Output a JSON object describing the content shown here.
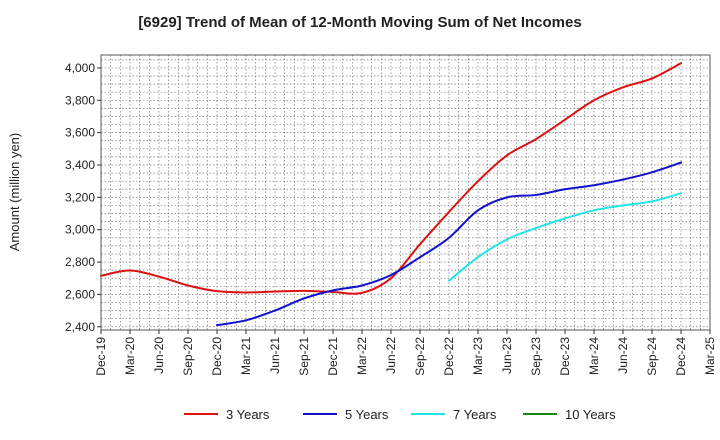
{
  "chart_data": {
    "type": "line",
    "title": "[6929]  Trend of Mean of 12-Month Moving Sum of Net Incomes",
    "xlabel": "",
    "ylabel": "Amount (million yen)",
    "ylim": [
      2380,
      4080
    ],
    "yticks": [
      2400,
      2600,
      2800,
      3000,
      3200,
      3400,
      3600,
      3800,
      4000
    ],
    "ytick_labels": [
      "2,400",
      "2,600",
      "2,800",
      "3,000",
      "3,200",
      "3,400",
      "3,600",
      "3,800",
      "4,000"
    ],
    "xlim": [
      "Dec-19",
      "Mar-25"
    ],
    "xticks": [
      "Dec-19",
      "Mar-20",
      "Jun-20",
      "Sep-20",
      "Dec-20",
      "Mar-21",
      "Jun-21",
      "Sep-21",
      "Dec-21",
      "Mar-22",
      "Jun-22",
      "Sep-22",
      "Dec-22",
      "Mar-23",
      "Jun-23",
      "Sep-23",
      "Dec-23",
      "Mar-24",
      "Jun-24",
      "Sep-24",
      "Dec-24",
      "Mar-25"
    ],
    "grid": true,
    "legend_position": "bottom",
    "series": [
      {
        "name": "3 Years",
        "color": "#dd1111",
        "x": [
          "Dec-19",
          "Mar-20",
          "Jun-20",
          "Sep-20",
          "Dec-20",
          "Mar-21",
          "Jun-21",
          "Sep-21",
          "Dec-21",
          "Mar-22",
          "Jun-22",
          "Sep-22",
          "Dec-22",
          "Mar-23",
          "Jun-23",
          "Sep-23",
          "Dec-23",
          "Mar-24",
          "Jun-24",
          "Sep-24",
          "Dec-24"
        ],
        "values": [
          2715,
          2748,
          2710,
          2655,
          2620,
          2612,
          2618,
          2622,
          2615,
          2610,
          2700,
          2910,
          3110,
          3300,
          3460,
          3560,
          3680,
          3800,
          3880,
          3935,
          4030
        ]
      },
      {
        "name": "5 Years",
        "color": "#1111cc",
        "x": [
          "Dec-20",
          "Mar-21",
          "Jun-21",
          "Sep-21",
          "Dec-21",
          "Mar-22",
          "Jun-22",
          "Sep-22",
          "Dec-22",
          "Mar-23",
          "Jun-23",
          "Sep-23",
          "Dec-23",
          "Mar-24",
          "Jun-24",
          "Sep-24",
          "Dec-24"
        ],
        "values": [
          2410,
          2440,
          2500,
          2575,
          2625,
          2655,
          2720,
          2830,
          2950,
          3120,
          3200,
          3215,
          3250,
          3275,
          3310,
          3355,
          3415
        ]
      },
      {
        "name": "7 Years",
        "color": "#22e5e5",
        "x": [
          "Dec-22",
          "Mar-23",
          "Jun-23",
          "Sep-23",
          "Dec-23",
          "Mar-24",
          "Jun-24",
          "Sep-24",
          "Dec-24"
        ],
        "values": [
          2685,
          2830,
          2940,
          3010,
          3070,
          3120,
          3150,
          3175,
          3225
        ]
      },
      {
        "name": "10 Years",
        "color": "#118811",
        "x": [],
        "values": []
      }
    ]
  }
}
